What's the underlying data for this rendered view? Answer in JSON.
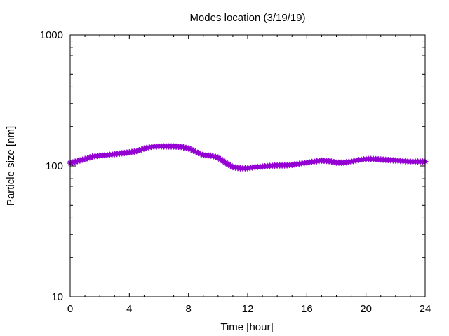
{
  "chart_data": {
    "type": "line",
    "title": "Modes location (3/19/19)",
    "xlabel": "Time [hour]",
    "ylabel": "Particle size [nm]",
    "xlim": [
      0,
      24
    ],
    "ylim": [
      10,
      1000
    ],
    "yscale": "log",
    "grid": false,
    "x_ticks": [
      0,
      4,
      8,
      12,
      16,
      20,
      24
    ],
    "x_tick_labels": [
      "0",
      "4",
      "8",
      "12",
      "16",
      "20",
      "24"
    ],
    "y_ticks": [
      10,
      100,
      1000
    ],
    "y_tick_labels": [
      "10",
      "100",
      "1000"
    ],
    "series": [
      {
        "color": "#9400d3",
        "marker": "star",
        "x": [
          0,
          0.5,
          1,
          1.5,
          2,
          2.5,
          3,
          3.5,
          4,
          4.5,
          5,
          5.5,
          6,
          6.5,
          7,
          7.5,
          8,
          8.5,
          9,
          9.5,
          10,
          10.5,
          11,
          11.5,
          12,
          12.5,
          13,
          13.5,
          14,
          14.5,
          15,
          15.5,
          16,
          16.5,
          17,
          17.5,
          18,
          18.5,
          19,
          19.5,
          20,
          20.5,
          21,
          21.5,
          22,
          22.5,
          23,
          23.5,
          24
        ],
        "y": [
          105,
          109,
          113,
          118,
          120,
          121,
          123,
          125,
          127,
          130,
          136,
          140,
          141,
          141,
          141,
          140,
          136,
          128,
          121,
          120,
          116,
          106,
          98,
          96,
          96,
          98,
          99,
          100,
          101,
          101,
          102,
          104,
          106,
          108,
          110,
          109,
          106,
          106,
          108,
          111,
          113,
          113,
          112,
          111,
          110,
          109,
          108,
          108,
          108
        ]
      }
    ]
  }
}
